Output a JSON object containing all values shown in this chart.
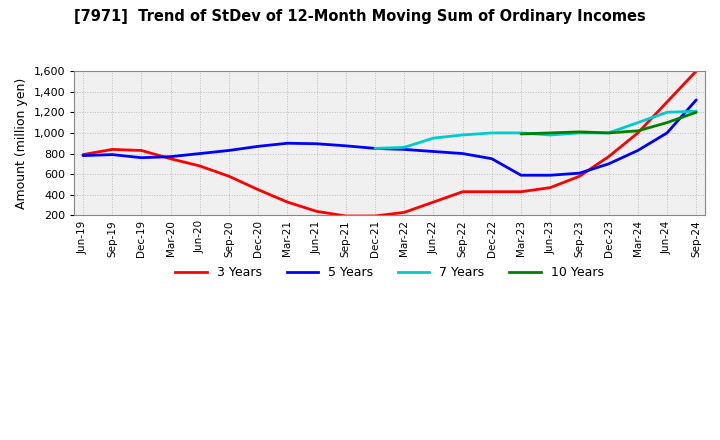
{
  "title": "[7971]  Trend of StDev of 12-Month Moving Sum of Ordinary Incomes",
  "ylabel": "Amount (million yen)",
  "ylim": [
    200,
    1600
  ],
  "yticks": [
    200,
    400,
    600,
    800,
    1000,
    1200,
    1400,
    1600
  ],
  "background_color": "#ffffff",
  "plot_bg_color": "#f0f0f0",
  "x_labels": [
    "Jun-19",
    "Sep-19",
    "Dec-19",
    "Mar-20",
    "Jun-20",
    "Sep-20",
    "Dec-20",
    "Mar-21",
    "Jun-21",
    "Sep-21",
    "Dec-21",
    "Mar-22",
    "Jun-22",
    "Sep-22",
    "Dec-22",
    "Mar-23",
    "Jun-23",
    "Sep-23",
    "Dec-23",
    "Mar-24",
    "Jun-24",
    "Sep-24"
  ],
  "series": {
    "3 Years": {
      "color": "#ff0000",
      "data_x": [
        0,
        1,
        2,
        3,
        4,
        5,
        6,
        7,
        8,
        9,
        10,
        11,
        12,
        13,
        14,
        15,
        16,
        17,
        18,
        19,
        20,
        21
      ],
      "data_y": [
        790,
        840,
        830,
        750,
        680,
        580,
        450,
        330,
        240,
        195,
        195,
        230,
        330,
        430,
        430,
        430,
        470,
        580,
        770,
        1000,
        1300,
        1600
      ]
    },
    "5 Years": {
      "color": "#0000ff",
      "data_x": [
        0,
        1,
        2,
        3,
        4,
        5,
        6,
        7,
        8,
        9,
        10,
        11,
        12,
        13,
        14,
        15,
        16,
        17,
        18,
        19,
        20,
        21
      ],
      "data_y": [
        780,
        790,
        760,
        770,
        800,
        830,
        870,
        900,
        895,
        875,
        850,
        840,
        820,
        800,
        750,
        590,
        590,
        610,
        700,
        830,
        1000,
        1320
      ]
    },
    "7 Years": {
      "color": "#00cccc",
      "data_x": [
        10,
        11,
        12,
        13,
        14,
        15,
        16,
        17,
        18,
        19,
        20,
        21
      ],
      "data_y": [
        850,
        860,
        950,
        980,
        1000,
        1000,
        980,
        1000,
        1000,
        1100,
        1200,
        1210
      ]
    },
    "10 Years": {
      "color": "#008000",
      "data_x": [
        15,
        16,
        17,
        18,
        19,
        20,
        21
      ],
      "data_y": [
        990,
        1000,
        1010,
        1000,
        1020,
        1100,
        1200
      ]
    }
  },
  "legend_labels": [
    "3 Years",
    "5 Years",
    "7 Years",
    "10 Years"
  ]
}
